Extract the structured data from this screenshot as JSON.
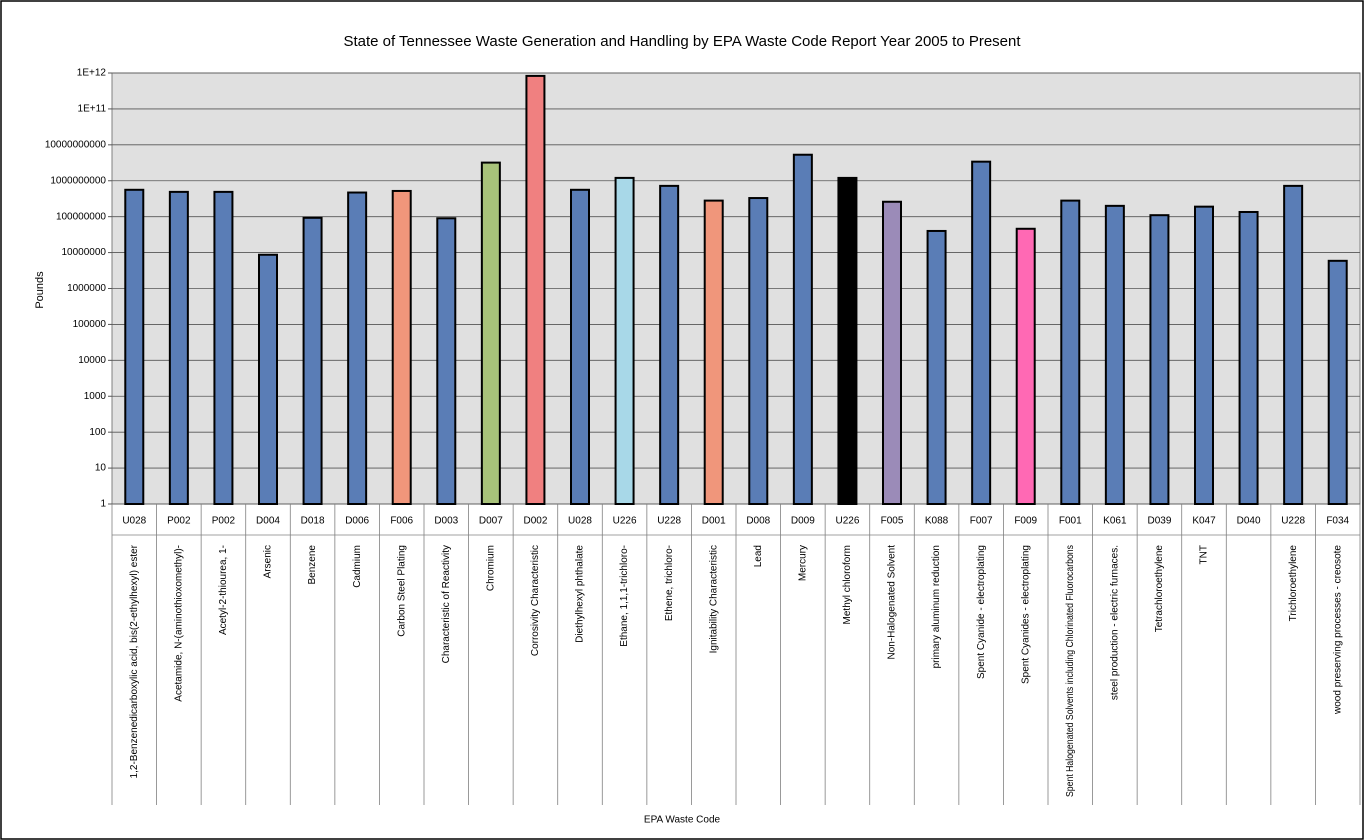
{
  "chart_data": {
    "type": "bar",
    "title": "State of Tennessee Waste Generation and Handling by EPA Waste Code Report Year 2005 to Present",
    "y_label": "Pounds",
    "x_label": "EPA Waste Code",
    "log_scale": true,
    "grid": true,
    "codes": [
      "U028",
      "P002",
      "P002",
      "D004",
      "D018",
      "D006",
      "F006",
      "D003",
      "D007",
      "D002",
      "U028",
      "U226",
      "U228",
      "D001",
      "D008",
      "D009",
      "U226",
      "F005",
      "K088",
      "F007",
      "F009",
      "F001",
      "K061",
      "D039",
      "K047",
      "D040",
      "U228",
      "F034"
    ],
    "categories": [
      "1,2-Benzenedicarboxylic acid, bis(2-ethylhexyl) ester",
      "Acetamide, N-(aminothioxomethyl)-",
      "Acetyl-2-thiourea, 1-",
      "Arsenic",
      "Benzene",
      "Cadmium",
      "Carbon Steel Plating",
      "Characteristic of Reactivity",
      "Chromium",
      "Corrosivity Characteristic",
      "Diethylhexyl phthalate",
      "Ethane, 1,1,1-trichloro-",
      "Ethene, trichloro-",
      "Ignitability Characteristic",
      "Lead",
      "Mercury",
      "Methyl chloroform",
      "Non-Halogenated Solvent",
      "primary aluminum reduction",
      "Spent Cyanide - electroplating",
      "Spent Cyanides - electroplating",
      "Spent Halogenated Solvents including Chlorinated Fluorocarbons",
      "steel production - electric furnaces.",
      "Tetrachloroethylene",
      "TNT",
      null,
      "Trichloroethylene",
      "wood preserving processes - creosote"
    ],
    "values": [
      560000000,
      490000000,
      490000000,
      8700000,
      93000000,
      470000000,
      520000000,
      90000000,
      3200000000,
      830000000000,
      560000000,
      1200000000,
      720000000,
      280000000,
      330000000,
      5300000000,
      1200000000,
      260000000,
      40000000,
      3400000000,
      46000000,
      280000000,
      200000000,
      110000000,
      190000000,
      135000000,
      720000000,
      5900000
    ],
    "colors": [
      "#5a7db6",
      "#5a7db6",
      "#5a7db6",
      "#5a7db6",
      "#5a7db6",
      "#5a7db6",
      "#f0967b",
      "#5a7db6",
      "#a8c27a",
      "#f08080",
      "#5a7db6",
      "#a8d8e8",
      "#5a7db6",
      "#f0967b",
      "#5a7db6",
      "#5a7db6",
      "#000000",
      "#9b8bb8",
      "#5a7db6",
      "#5a7db6",
      "#ff69b4",
      "#5a7db6",
      "#5a7db6",
      "#5a7db6",
      "#5a7db6",
      "#5a7db6",
      "#5a7db6",
      "#5a7db6"
    ],
    "ylim": [
      1,
      1000000000000
    ],
    "yticks": [
      1,
      10,
      100,
      1000,
      10000,
      100000,
      1000000,
      10000000,
      100000000,
      1000000000,
      10000000000,
      {
        "value": 100000000000,
        "label": "1E+11"
      },
      {
        "value": 1000000000000,
        "label": "1E+12"
      }
    ]
  }
}
